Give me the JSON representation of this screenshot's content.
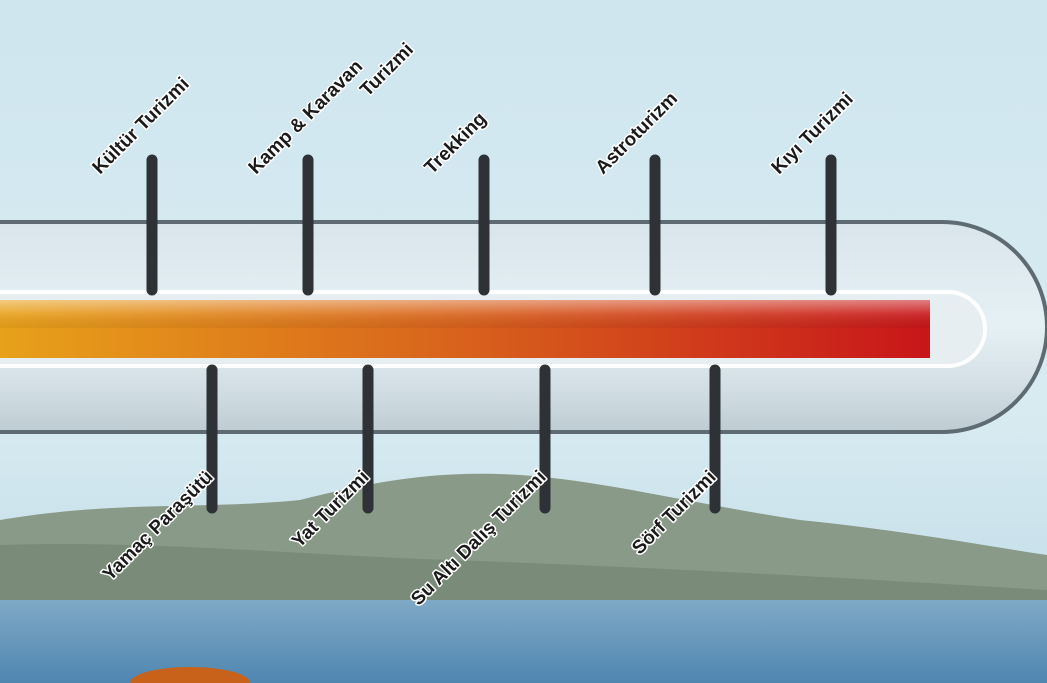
{
  "top_labels": [
    {
      "lines": [
        "Kültür Turizmi"
      ]
    },
    {
      "lines": [
        "Kamp & Karavan",
        "Turizmi"
      ]
    },
    {
      "lines": [
        "Trekking"
      ]
    },
    {
      "lines": [
        "Astroturizm"
      ]
    },
    {
      "lines": [
        "Kıyı Turizmi"
      ]
    }
  ],
  "bottom_labels": [
    {
      "lines": [
        "Yamaç Paraşütü"
      ]
    },
    {
      "lines": [
        "Yat Turizmi"
      ]
    },
    {
      "lines": [
        "Su Altı Dalış Turizmi"
      ]
    },
    {
      "lines": [
        "Sörf Turizmi"
      ]
    }
  ]
}
